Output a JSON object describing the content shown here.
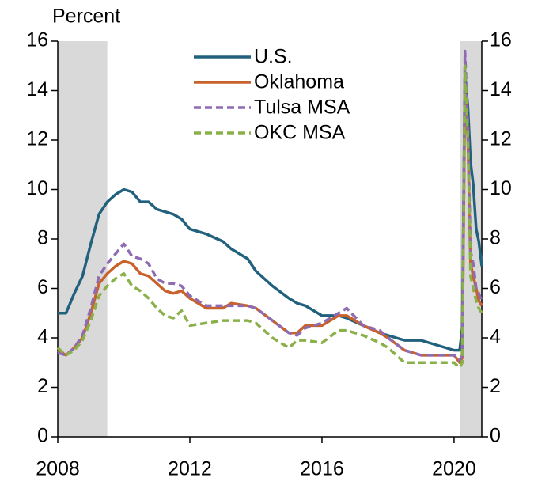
{
  "chart_data": {
    "type": "line",
    "y_label": "Percent",
    "x": [
      2008,
      2008.25,
      2008.5,
      2008.75,
      2009,
      2009.25,
      2009.5,
      2009.75,
      2010,
      2010.25,
      2010.5,
      2010.75,
      2011,
      2011.25,
      2011.5,
      2011.75,
      2012,
      2012.5,
      2013,
      2013.25,
      2013.75,
      2014,
      2014.5,
      2015,
      2015.25,
      2015.5,
      2016,
      2016.5,
      2016.75,
      2017.25,
      2017.75,
      2018,
      2018.5,
      2019,
      2019.5,
      2020,
      2020.17,
      2020.25,
      2020.33,
      2020.42,
      2020.5,
      2020.58,
      2020.67,
      2020.75,
      2020.84
    ],
    "series": [
      {
        "name": "U.S.",
        "color": "#22617d",
        "dashed": false,
        "values": [
          5.0,
          5.0,
          5.8,
          6.5,
          7.8,
          9.0,
          9.5,
          9.8,
          10.0,
          9.9,
          9.5,
          9.5,
          9.2,
          9.1,
          9.0,
          8.8,
          8.4,
          8.2,
          7.9,
          7.6,
          7.2,
          6.7,
          6.1,
          5.6,
          5.4,
          5.3,
          4.9,
          4.9,
          4.8,
          4.5,
          4.2,
          4.1,
          3.9,
          3.9,
          3.7,
          3.5,
          3.5,
          4.4,
          14.7,
          13.3,
          11.1,
          10.2,
          8.4,
          7.9,
          6.9
        ]
      },
      {
        "name": "Oklahoma",
        "color": "#c8622a",
        "dashed": false,
        "values": [
          3.5,
          3.3,
          3.6,
          4.0,
          5.0,
          6.2,
          6.6,
          6.9,
          7.1,
          7.0,
          6.6,
          6.5,
          6.2,
          5.9,
          5.8,
          5.9,
          5.6,
          5.2,
          5.2,
          5.4,
          5.3,
          5.2,
          4.7,
          4.2,
          4.2,
          4.5,
          4.5,
          4.9,
          4.9,
          4.5,
          4.2,
          4.0,
          3.5,
          3.3,
          3.3,
          3.3,
          3.0,
          3.2,
          14.0,
          12.0,
          7.0,
          6.5,
          6.0,
          5.5,
          5.3
        ]
      },
      {
        "name": "Tulsa MSA",
        "color": "#8e6bb3",
        "dashed": true,
        "values": [
          3.4,
          3.3,
          3.6,
          4.1,
          5.2,
          6.5,
          7.0,
          7.4,
          7.8,
          7.3,
          7.2,
          7.0,
          6.4,
          6.2,
          6.2,
          6.1,
          5.7,
          5.3,
          5.3,
          5.3,
          5.3,
          5.2,
          4.7,
          4.2,
          4.1,
          4.4,
          4.6,
          5.0,
          5.2,
          4.5,
          4.3,
          4.0,
          3.5,
          3.3,
          3.3,
          3.3,
          3.1,
          3.3,
          15.6,
          12.5,
          7.5,
          7.0,
          6.0,
          5.8,
          5.5
        ]
      },
      {
        "name": "OKC MSA",
        "color": "#8ab04a",
        "dashed": true,
        "values": [
          3.6,
          3.3,
          3.5,
          3.9,
          4.7,
          5.7,
          6.1,
          6.4,
          6.6,
          6.1,
          5.9,
          5.6,
          5.2,
          4.9,
          4.8,
          5.1,
          4.5,
          4.6,
          4.7,
          4.7,
          4.7,
          4.6,
          4.0,
          3.6,
          3.9,
          3.9,
          3.8,
          4.3,
          4.3,
          4.1,
          3.8,
          3.6,
          3.0,
          3.0,
          3.0,
          3.0,
          2.8,
          3.0,
          15.0,
          12.0,
          6.5,
          6.0,
          5.5,
          5.2,
          5.0
        ]
      }
    ],
    "recessions": [
      [
        2008,
        2009.5
      ],
      [
        2020.17,
        2020.84
      ]
    ],
    "recession_color": "#d9d9d9",
    "xlim": [
      2008,
      2020.84
    ],
    "xticks": [
      2008,
      2012,
      2016,
      2020
    ],
    "ylim": [
      0,
      16
    ],
    "yticks": [
      0,
      2,
      4,
      6,
      8,
      10,
      12,
      14,
      16
    ],
    "y2lim": [
      0,
      16
    ],
    "y2ticks": [
      0,
      2,
      4,
      6,
      8,
      10,
      12,
      14,
      16
    ],
    "legend": "upper center"
  }
}
